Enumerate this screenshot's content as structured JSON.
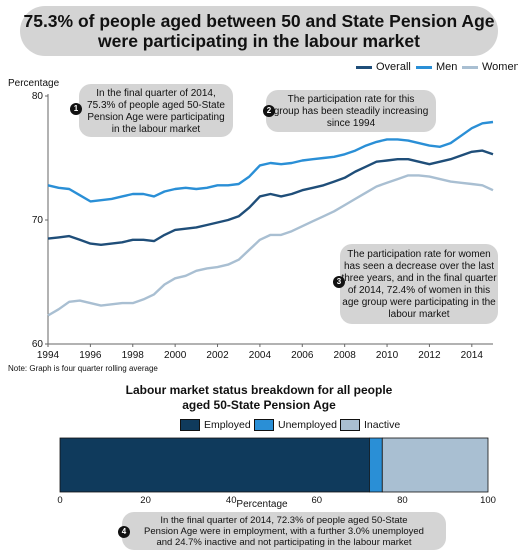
{
  "title": {
    "line1": "75.3% of people aged between 50 and State Pension Age",
    "line2": "were participating in the labour market"
  },
  "colors": {
    "overall": "#1f4e79",
    "men": "#2a8fd6",
    "women": "#a9bfd2",
    "employed": "#0f3a5c",
    "unemployed": "#2a8fd6",
    "inactive": "#a9bfd2"
  },
  "callouts": {
    "c1": {
      "num": "1",
      "lines": [
        "In the final quarter of 2014,",
        "75.3% of people aged 50-State",
        "Pension Age were participating",
        "in the labour market"
      ]
    },
    "c2": {
      "num": "2",
      "lines": [
        "The participation rate for this",
        "group has been steadily increasing",
        "since 1994"
      ]
    },
    "c3": {
      "num": "3",
      "lines": [
        "The participation rate for women",
        "has seen a decrease over the last",
        "three years, and in the final quarter",
        "of 2014, 72.4% of women in this",
        "age group were participating in the",
        "labour market"
      ]
    },
    "c4": {
      "num": "4",
      "lines": [
        "In the final quarter of 2014, 72.3% of people aged 50-State",
        "Pension Age were in employment, with a further 3.0% unemployed",
        "and 24.7% inactive and not participating in the labour market"
      ]
    }
  },
  "note": "Note: Graph is four quarter rolling average",
  "chart_data": [
    {
      "type": "line",
      "ylabel": "Percentage",
      "ylim": [
        60,
        80
      ],
      "xlim": [
        1994,
        2015
      ],
      "y_ticks": [
        60,
        70,
        80
      ],
      "x_ticks": [
        1994,
        1996,
        1998,
        2000,
        2002,
        2004,
        2006,
        2008,
        2010,
        2012,
        2014
      ],
      "legend": "top-right",
      "x": [
        1994,
        1994.5,
        1995,
        1995.5,
        1996,
        1996.5,
        1997,
        1997.5,
        1998,
        1998.5,
        1999,
        1999.5,
        2000,
        2000.5,
        2001,
        2001.5,
        2002,
        2002.5,
        2003,
        2003.5,
        2004,
        2004.5,
        2005,
        2005.5,
        2006,
        2006.5,
        2007,
        2007.5,
        2008,
        2008.5,
        2009,
        2009.5,
        2010,
        2010.5,
        2011,
        2011.5,
        2012,
        2012.5,
        2013,
        2013.5,
        2014,
        2014.5,
        2015
      ],
      "series": [
        {
          "name": "Overall",
          "values": [
            68.5,
            68.6,
            68.7,
            68.4,
            68.1,
            68.0,
            68.1,
            68.2,
            68.4,
            68.4,
            68.3,
            68.8,
            69.2,
            69.3,
            69.4,
            69.6,
            69.8,
            70.0,
            70.3,
            71.0,
            71.9,
            72.1,
            71.9,
            72.1,
            72.4,
            72.6,
            72.8,
            73.1,
            73.4,
            73.9,
            74.3,
            74.7,
            74.8,
            74.9,
            74.9,
            74.7,
            74.5,
            74.7,
            74.9,
            75.2,
            75.5,
            75.6,
            75.3
          ]
        },
        {
          "name": "Men",
          "values": [
            72.8,
            72.6,
            72.5,
            72.0,
            71.5,
            71.6,
            71.7,
            71.9,
            72.1,
            72.1,
            71.9,
            72.3,
            72.5,
            72.6,
            72.5,
            72.6,
            72.8,
            72.8,
            72.9,
            73.5,
            74.4,
            74.6,
            74.5,
            74.6,
            74.8,
            74.9,
            75.0,
            75.1,
            75.3,
            75.6,
            76.0,
            76.3,
            76.5,
            76.5,
            76.4,
            76.2,
            76.0,
            75.9,
            76.2,
            76.8,
            77.4,
            77.8,
            77.9
          ]
        },
        {
          "name": "Women",
          "values": [
            62.3,
            62.8,
            63.4,
            63.5,
            63.3,
            63.1,
            63.2,
            63.3,
            63.3,
            63.6,
            64.0,
            64.8,
            65.3,
            65.5,
            65.9,
            66.1,
            66.2,
            66.4,
            66.8,
            67.6,
            68.4,
            68.8,
            68.8,
            69.1,
            69.5,
            69.9,
            70.3,
            70.7,
            71.2,
            71.7,
            72.2,
            72.7,
            73.0,
            73.3,
            73.6,
            73.6,
            73.5,
            73.3,
            73.1,
            73.0,
            72.9,
            72.8,
            72.4
          ]
        }
      ]
    },
    {
      "type": "bar",
      "orientation": "horizontal-stacked",
      "title": "Labour market status breakdown for all people aged 50-State Pension Age",
      "title_lines": [
        "Labour market status breakdown for all people",
        "aged 50-State Pension Age"
      ],
      "xlabel": "Percentage",
      "xlim": [
        0,
        100
      ],
      "x_ticks": [
        0,
        20,
        40,
        60,
        80,
        100
      ],
      "legend": "top-center",
      "series": [
        {
          "name": "Employed",
          "values": [
            72.3
          ]
        },
        {
          "name": "Unemployed",
          "values": [
            3.0
          ]
        },
        {
          "name": "Inactive",
          "values": [
            24.7
          ]
        }
      ]
    }
  ]
}
